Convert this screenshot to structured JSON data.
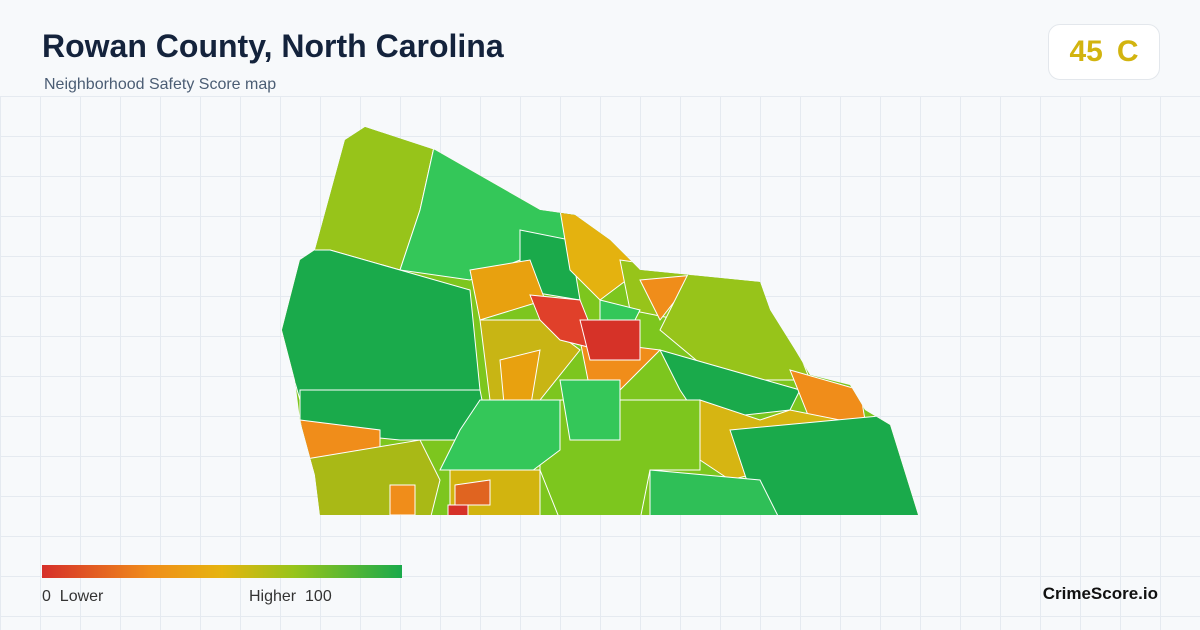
{
  "header": {
    "title": "Rowan County, North Carolina",
    "subtitle": "Neighborhood Safety Score map"
  },
  "score": {
    "value": 45,
    "grade": "C"
  },
  "legend": {
    "min": 0,
    "min_label": "Lower",
    "max_label": "Higher",
    "max": 100
  },
  "brand": "CrimeScore.io"
}
